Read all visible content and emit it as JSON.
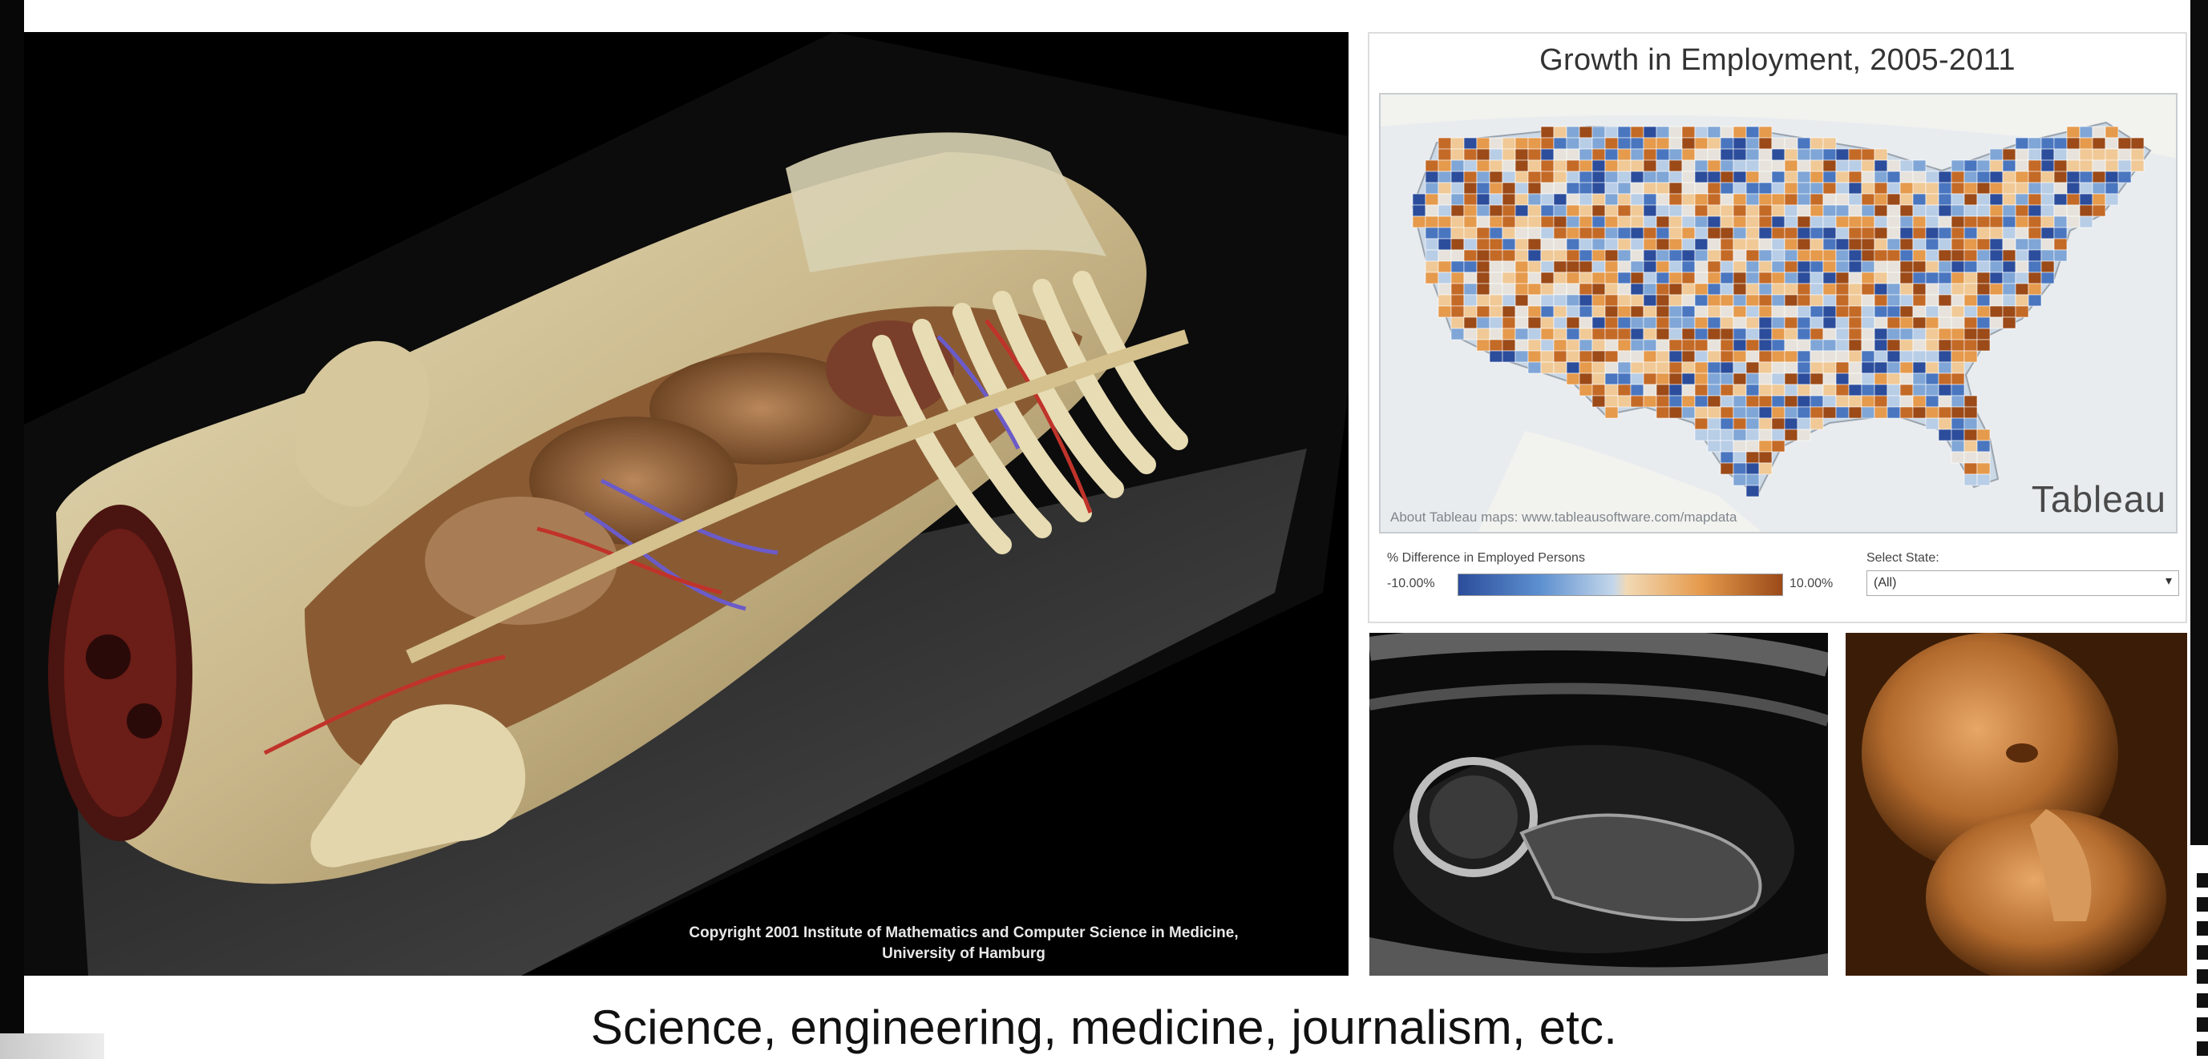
{
  "anatomy": {
    "copyright_line1": "Copyright 2001 Institute of Mathematics and Computer Science in Medicine,",
    "copyright_line2": "University of Hamburg"
  },
  "viz": {
    "title": "Growth in Employment, 2005-2011",
    "logo": "Tableau",
    "map_credit": "About Tableau maps: www.tableausoftware.com/mapdata",
    "legend": {
      "title": "% Difference in Employed Persons",
      "min_label": "-10.00%",
      "max_label": "10.00%",
      "colors": {
        "negative": "#2c4d9b",
        "neutral": "#e8e6e1",
        "positive": "#9b4a18"
      }
    },
    "select": {
      "label": "Select State:",
      "value": "(All)"
    }
  },
  "caption": "Science, engineering, medicine, journalism, etc."
}
